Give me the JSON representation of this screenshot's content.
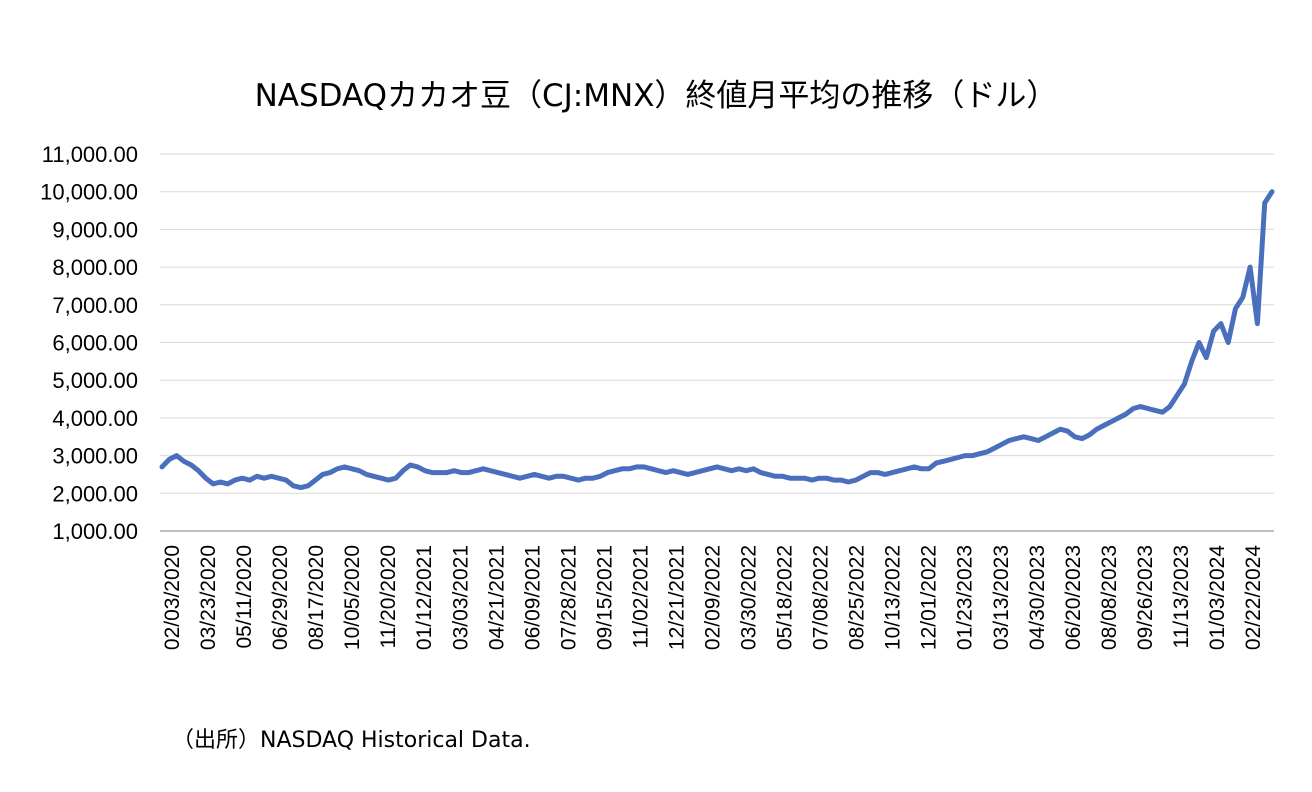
{
  "chart_data": {
    "type": "line",
    "title": "NASDAQカカオ豆（CJ:MNX）終値月平均の推移（ドル）",
    "source": "（出所）NASDAQ Historical Data.",
    "xlabel": "",
    "ylabel": "",
    "ylim": [
      1000,
      11000
    ],
    "yticks": [
      "1,000.00",
      "2,000.00",
      "3,000.00",
      "4,000.00",
      "5,000.00",
      "6,000.00",
      "7,000.00",
      "8,000.00",
      "9,000.00",
      "10,000.00",
      "11,000.00"
    ],
    "xticks": [
      "02/03/2020",
      "03/23/2020",
      "05/11/2020",
      "06/29/2020",
      "08/17/2020",
      "10/05/2020",
      "11/20/2020",
      "01/12/2021",
      "03/03/2021",
      "04/21/2021",
      "06/09/2021",
      "07/28/2021",
      "09/15/2021",
      "11/02/2021",
      "12/21/2021",
      "02/09/2022",
      "03/30/2022",
      "05/18/2022",
      "07/08/2022",
      "08/25/2022",
      "10/13/2022",
      "12/01/2022",
      "01/23/2023",
      "03/13/2023",
      "04/30/2023",
      "06/20/2023",
      "08/08/2023",
      "09/26/2023",
      "11/13/2023",
      "01/03/2024",
      "02/22/2024"
    ],
    "series": [
      {
        "name": "CJ:MNX",
        "color": "#4a6fbd",
        "points_per_tick": 35,
        "values": [
          2700,
          2900,
          3000,
          2850,
          2750,
          2600,
          2400,
          2250,
          2300,
          2250,
          2350,
          2400,
          2350,
          2450,
          2400,
          2450,
          2400,
          2350,
          2200,
          2150,
          2200,
          2350,
          2500,
          2550,
          2650,
          2700,
          2650,
          2600,
          2500,
          2450,
          2400,
          2350,
          2400,
          2600,
          2750,
          2700,
          2600,
          2550,
          2550,
          2550,
          2600,
          2550,
          2550,
          2600,
          2650,
          2600,
          2550,
          2500,
          2450,
          2400,
          2450,
          2500,
          2450,
          2400,
          2450,
          2450,
          2400,
          2350,
          2400,
          2400,
          2450,
          2550,
          2600,
          2650,
          2650,
          2700,
          2700,
          2650,
          2600,
          2550,
          2600,
          2550,
          2500,
          2550,
          2600,
          2650,
          2700,
          2650,
          2600,
          2650,
          2600,
          2650,
          2550,
          2500,
          2450,
          2450,
          2400,
          2400,
          2400,
          2350,
          2400,
          2400,
          2350,
          2350,
          2300,
          2350,
          2450,
          2550,
          2550,
          2500,
          2550,
          2600,
          2650,
          2700,
          2650,
          2650,
          2800,
          2850,
          2900,
          2950,
          3000,
          3000,
          3050,
          3100,
          3200,
          3300,
          3400,
          3450,
          3500,
          3450,
          3400,
          3500,
          3600,
          3700,
          3650,
          3500,
          3450,
          3550,
          3700,
          3800,
          3900,
          4000,
          4100,
          4250,
          4300,
          4250,
          4200,
          4150,
          4300,
          4600,
          4900,
          5500,
          6000,
          5600,
          6300,
          6500,
          6000,
          6900,
          7200,
          8000,
          6500,
          9700,
          10000
        ]
      }
    ]
  }
}
